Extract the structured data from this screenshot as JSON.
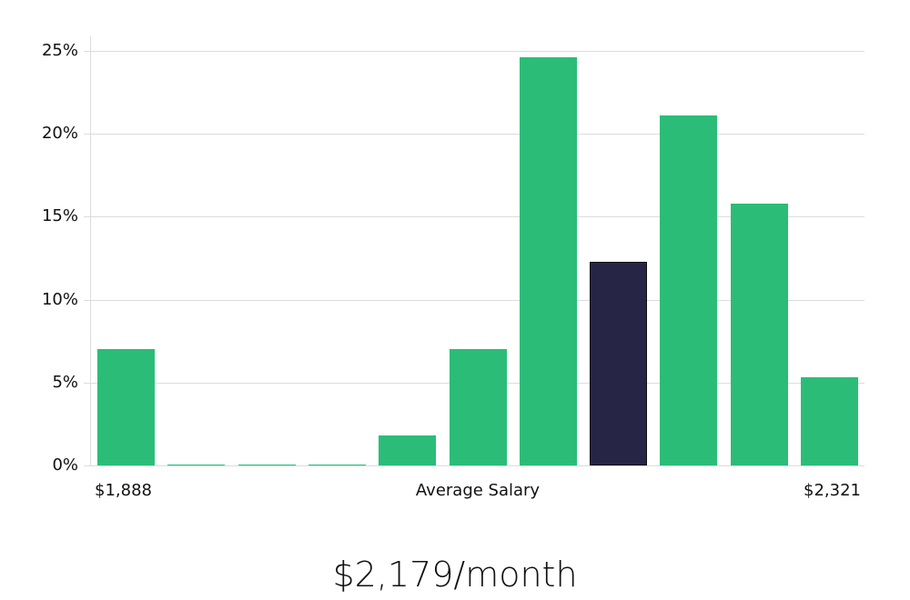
{
  "chart_data": {
    "type": "bar",
    "title": "",
    "xlabel": "Average Salary",
    "ylabel": "",
    "ylim": [
      0,
      25
    ],
    "yticks": [
      "0%",
      "5%",
      "10%",
      "15%",
      "20%",
      "25%"
    ],
    "grid": true,
    "x_range_labels": {
      "min": "$1,888",
      "center": "Average Salary",
      "max": "$2,321"
    },
    "categories": [
      "bin1",
      "bin2",
      "bin3",
      "bin4",
      "bin5",
      "bin6",
      "bin7",
      "bin8",
      "bin9",
      "bin10",
      "bin11"
    ],
    "values": [
      7.0,
      0.05,
      0.05,
      0.05,
      1.8,
      7.0,
      24.6,
      12.3,
      21.1,
      15.8,
      5.3
    ],
    "highlight_index": 7,
    "colors": {
      "default": "#2bbd77",
      "highlight": "#272546"
    }
  },
  "headline": "$2,179/month"
}
